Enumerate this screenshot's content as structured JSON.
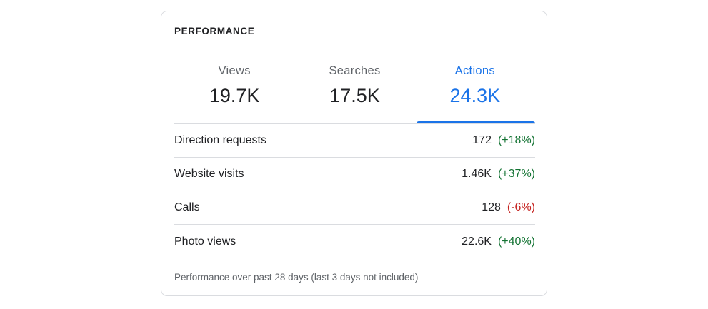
{
  "card": {
    "title": "PERFORMANCE",
    "footer": "Performance over past 28 days (last 3 days not included)"
  },
  "tabs": [
    {
      "label": "Views",
      "value": "19.7K",
      "active": false
    },
    {
      "label": "Searches",
      "value": "17.5K",
      "active": false
    },
    {
      "label": "Actions",
      "value": "24.3K",
      "active": true
    }
  ],
  "rows": [
    {
      "label": "Direction requests",
      "value": "172",
      "change": "(+18%)",
      "trend": "positive"
    },
    {
      "label": "Website visits",
      "value": "1.46K",
      "change": "(+37%)",
      "trend": "positive"
    },
    {
      "label": "Calls",
      "value": "128",
      "change": "(-6%)",
      "trend": "negative"
    },
    {
      "label": "Photo views",
      "value": "22.6K",
      "change": "(+40%)",
      "trend": "positive"
    }
  ],
  "colors": {
    "accent": "#1a73e8",
    "positive": "#137333",
    "negative": "#c5221f",
    "border": "#dadce0"
  }
}
